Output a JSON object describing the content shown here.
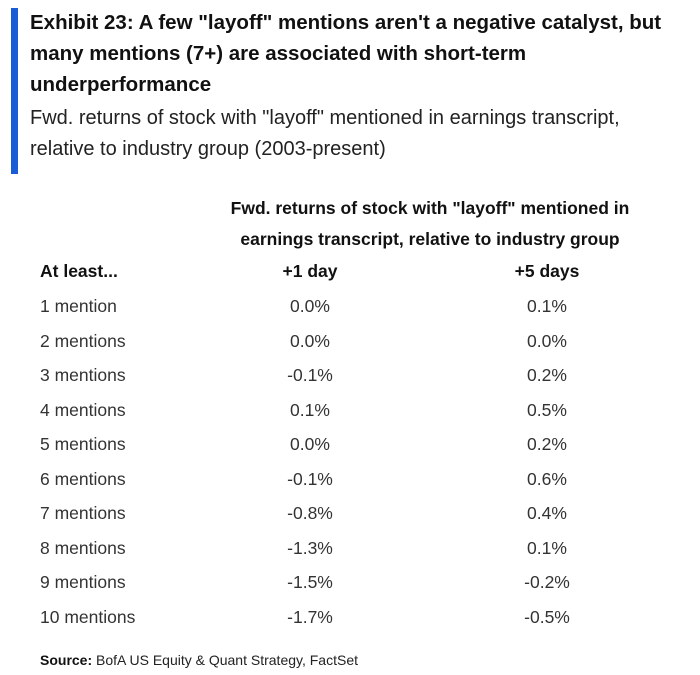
{
  "exhibit": {
    "title": "Exhibit 23: A few \"layoff\" mentions aren't a negative catalyst, but many mentions (7+) are associated with short-term underperformance",
    "subtitle": "Fwd. returns of stock with \"layoff\" mentioned in earnings transcript, relative to industry group (2003-present)",
    "accent_color": "#1a5bd6"
  },
  "table": {
    "group_header": "Fwd. returns of stock with \"layoff\" mentioned in earnings transcript, relative to industry group",
    "columns": [
      "At least...",
      "+1 day",
      "+5 days"
    ],
    "rows": [
      [
        "1 mention",
        "0.0%",
        "0.1%"
      ],
      [
        "2 mentions",
        "0.0%",
        "0.0%"
      ],
      [
        "3 mentions",
        "-0.1%",
        "0.2%"
      ],
      [
        "4 mentions",
        "0.1%",
        "0.5%"
      ],
      [
        "5 mentions",
        "0.0%",
        "0.2%"
      ],
      [
        "6 mentions",
        "-0.1%",
        "0.6%"
      ],
      [
        "7 mentions",
        "-0.8%",
        "0.4%"
      ],
      [
        "8 mentions",
        "-1.3%",
        "0.1%"
      ],
      [
        "9 mentions",
        "-1.5%",
        "-0.2%"
      ],
      [
        "10 mentions",
        "-1.7%",
        "-0.5%"
      ]
    ]
  },
  "source": {
    "label": "Source:",
    "text": " BofA US Equity & Quant Strategy, FactSet"
  }
}
